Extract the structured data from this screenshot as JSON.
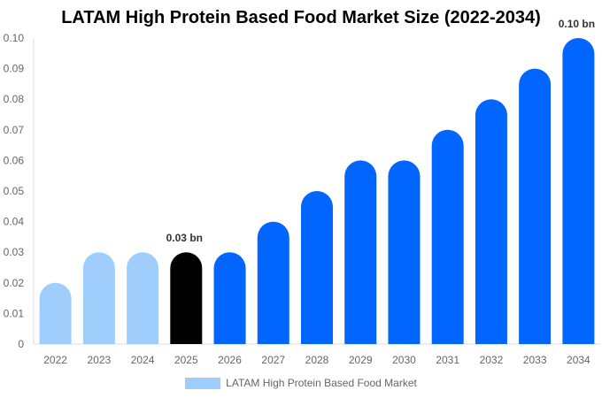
{
  "chart_data": {
    "type": "bar",
    "title": "LATAM High Protein Based Food Market Size (2022-2034)",
    "categories": [
      "2022",
      "2023",
      "2024",
      "2025",
      "2026",
      "2027",
      "2028",
      "2029",
      "2030",
      "2031",
      "2032",
      "2033",
      "2034"
    ],
    "series": [
      {
        "name": "LATAM High Protein Based Food Market",
        "values": [
          0.02,
          0.03,
          0.03,
          0.03,
          0.03,
          0.04,
          0.05,
          0.06,
          0.06,
          0.07,
          0.08,
          0.09,
          0.1
        ]
      }
    ],
    "ylim": [
      0,
      0.1
    ],
    "yticks": [
      "0",
      "0.01",
      "0.02",
      "0.03",
      "0.04",
      "0.05",
      "0.06",
      "0.07",
      "0.08",
      "0.09",
      "0.10"
    ],
    "data_labels": [
      {
        "category": "2025",
        "text": "0.03 bn"
      },
      {
        "category": "2034",
        "text": "0.10 bn"
      }
    ],
    "colors": {
      "historical": "#a0cefc",
      "current": "#000000",
      "forecast": "#0066ff"
    },
    "bar_color_groups": [
      "historical",
      "historical",
      "historical",
      "current",
      "forecast",
      "forecast",
      "forecast",
      "forecast",
      "forecast",
      "forecast",
      "forecast",
      "forecast",
      "forecast"
    ],
    "legend_position": "bottom",
    "grid": false
  }
}
